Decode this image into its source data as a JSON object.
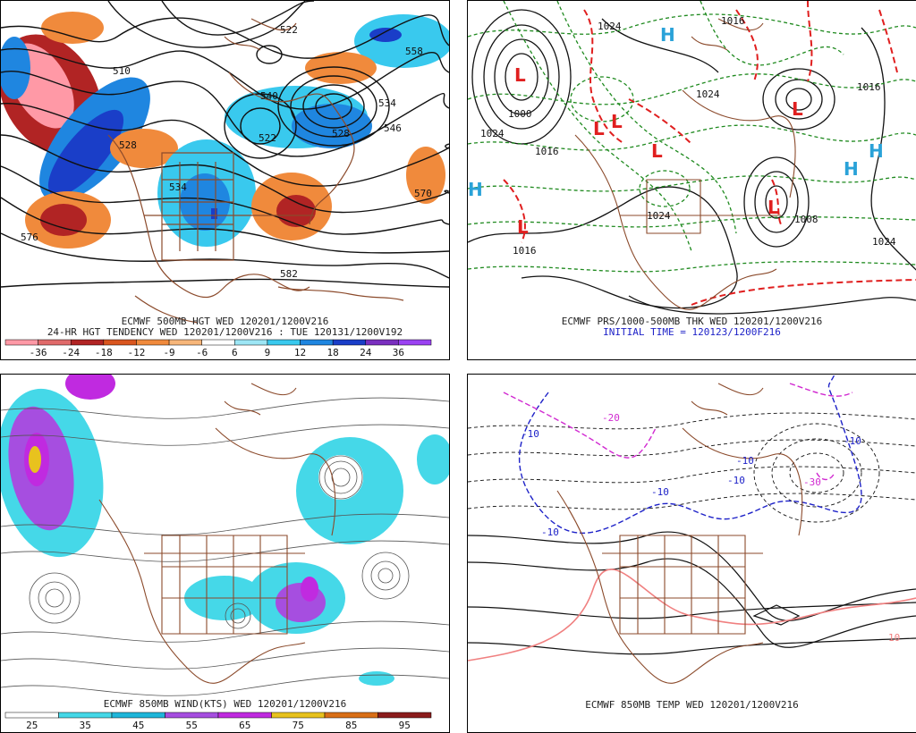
{
  "panel1": {
    "caption1": "ECMWF 500MB HGT WED 120201/1200V216",
    "caption2": "24-HR HGT TENDENCY WED 120201/1200V216 : TUE 120131/1200V192",
    "contour_labels": [
      "522",
      "510",
      "558",
      "534",
      "528",
      "546",
      "522",
      "528",
      "534",
      "570",
      "576",
      "582",
      "540"
    ],
    "colorbar": {
      "labels": [
        "-36",
        "-24",
        "-18",
        "-12",
        "-9",
        "-6",
        "6",
        "9",
        "12",
        "18",
        "24",
        "36"
      ],
      "colors": [
        "#ff99a6",
        "#e06a6a",
        "#b12424",
        "#d9561f",
        "#f08a3c",
        "#f7b67a",
        "#ffffff",
        "#9de6f5",
        "#39c9ee",
        "#1f86e0",
        "#1a3ec8",
        "#7a2fbf",
        "#9b42f2"
      ]
    }
  },
  "panel2": {
    "caption1": "ECMWF PRS/1000-500MB THK WED 120201/1200V216",
    "caption2": "INITIAL TIME = 120123/1200F216",
    "pressure_labels": [
      "1024",
      "1016",
      "1000",
      "1024",
      "1016",
      "1024",
      "1016",
      "1008",
      "1024",
      "1016",
      "1024"
    ],
    "center_labels": [
      "L",
      "L",
      "L",
      "L",
      "L",
      "L",
      "L",
      "H",
      "H",
      "H",
      "H"
    ],
    "low_color": "#e01f1f",
    "high_color": "#2aa2d8"
  },
  "panel3": {
    "caption": "ECMWF 850MB WIND(KTS) WED 120201/1200V216",
    "colorbar": {
      "labels": [
        "25",
        "35",
        "45",
        "55",
        "65",
        "75",
        "85",
        "95"
      ],
      "colors": [
        "#ffffff",
        "#45d8e8",
        "#1fb6da",
        "#a64ee0",
        "#c02ae0",
        "#e8c21e",
        "#d96f17",
        "#8b1c1c"
      ]
    }
  },
  "panel4": {
    "caption": "ECMWF 850MB TEMP WED 120201/1200V216",
    "contour_labels": [
      "-10",
      "-10",
      "-10",
      "-10",
      "-10",
      "-30",
      "-20",
      "-10",
      "10"
    ]
  }
}
